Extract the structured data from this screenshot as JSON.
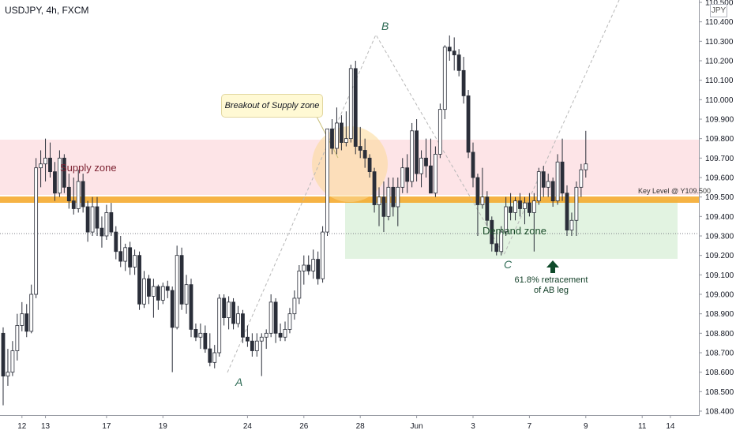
{
  "header": {
    "symbol_title": "USDJPY, 4h, FXCM"
  },
  "price_axis": {
    "currency": "JPY"
  },
  "annotations": {
    "supply_zone": "Supply zone",
    "demand_zone": "Demand zone",
    "key_level": "Key Level @ Y109.500",
    "breakout_callout": "Breakout of Supply zone",
    "retracement_line1": "61.8% retracement",
    "retracement_line2": "of AB leg",
    "point_a": "A",
    "point_b": "B",
    "point_c": "C"
  },
  "colors": {
    "bull": "#ffffff",
    "bear": "#2a2e39",
    "candle_outline": "#2a2e39",
    "supply_zone": "#fde4e7",
    "demand_zone": "#e2f3e1",
    "key_level_line": "#f5a623",
    "breakout_circle": "#fbd995",
    "pattern_line": "#b8b8b8",
    "arrow": "#0f4a2a"
  },
  "chart_data": {
    "type": "candlestick",
    "title": "USDJPY, 4h, FXCM",
    "y_ticks": [
      110.5,
      110.4,
      110.3,
      110.2,
      110.1,
      110.0,
      109.9,
      109.8,
      109.7,
      109.6,
      109.5,
      109.4,
      109.3,
      109.2,
      109.1,
      109.0,
      108.9,
      108.8,
      108.7,
      108.6,
      108.5,
      108.4
    ],
    "x_ticks": [
      {
        "label": "12",
        "index": 4
      },
      {
        "label": "13",
        "index": 9
      },
      {
        "label": "17",
        "index": 22
      },
      {
        "label": "19",
        "index": 34
      },
      {
        "label": "24",
        "index": 52
      },
      {
        "label": "26",
        "index": 64
      },
      {
        "label": "28",
        "index": 76
      },
      {
        "label": "Jun",
        "index": 88
      },
      {
        "label": "3",
        "index": 100
      },
      {
        "label": "7",
        "index": 112
      },
      {
        "label": "9",
        "index": 124
      },
      {
        "label": "11",
        "index": 136
      },
      {
        "label": "14",
        "index": 142
      }
    ],
    "ylim": [
      108.4,
      110.5
    ],
    "candles": [
      [
        108.8,
        108.83,
        108.43,
        108.58
      ],
      [
        108.58,
        108.72,
        108.53,
        108.6
      ],
      [
        108.6,
        108.76,
        108.58,
        108.71
      ],
      [
        108.71,
        108.9,
        108.66,
        108.84
      ],
      [
        108.84,
        108.96,
        108.81,
        108.9
      ],
      [
        108.9,
        108.95,
        108.78,
        108.81
      ],
      [
        108.81,
        109.05,
        108.8,
        109.0
      ],
      [
        109.0,
        109.7,
        108.98,
        109.65
      ],
      [
        109.65,
        109.74,
        109.55,
        109.67
      ],
      [
        109.67,
        109.8,
        109.58,
        109.7
      ],
      [
        109.7,
        109.78,
        109.6,
        109.63
      ],
      [
        109.63,
        109.68,
        109.48,
        109.52
      ],
      [
        109.52,
        109.74,
        109.5,
        109.7
      ],
      [
        109.7,
        109.72,
        109.52,
        109.55
      ],
      [
        109.55,
        109.62,
        109.44,
        109.48
      ],
      [
        109.48,
        109.6,
        109.41,
        109.44
      ],
      [
        109.44,
        109.64,
        109.42,
        109.58
      ],
      [
        109.58,
        109.62,
        109.42,
        109.45
      ],
      [
        109.45,
        109.48,
        109.27,
        109.32
      ],
      [
        109.32,
        109.5,
        109.3,
        109.45
      ],
      [
        109.45,
        109.5,
        109.3,
        109.34
      ],
      [
        109.34,
        109.4,
        109.24,
        109.3
      ],
      [
        109.3,
        109.46,
        109.28,
        109.42
      ],
      [
        109.42,
        109.47,
        109.3,
        109.32
      ],
      [
        109.32,
        109.35,
        109.18,
        109.22
      ],
      [
        109.22,
        109.3,
        109.14,
        109.17
      ],
      [
        109.17,
        109.26,
        109.12,
        109.24
      ],
      [
        109.24,
        109.27,
        109.1,
        109.14
      ],
      [
        109.14,
        109.23,
        109.1,
        109.2
      ],
      [
        109.2,
        109.22,
        108.92,
        108.95
      ],
      [
        108.95,
        109.12,
        108.93,
        109.08
      ],
      [
        109.08,
        109.1,
        108.95,
        108.99
      ],
      [
        108.99,
        109.08,
        108.88,
        109.04
      ],
      [
        109.04,
        109.05,
        108.92,
        108.97
      ],
      [
        108.97,
        109.06,
        108.95,
        109.04
      ],
      [
        109.04,
        109.07,
        108.98,
        109.02
      ],
      [
        109.02,
        109.04,
        108.6,
        108.83
      ],
      [
        108.83,
        109.25,
        108.82,
        109.2
      ],
      [
        109.2,
        109.24,
        108.92,
        108.95
      ],
      [
        108.95,
        109.1,
        108.9,
        109.05
      ],
      [
        109.05,
        109.08,
        108.78,
        108.82
      ],
      [
        108.82,
        108.85,
        108.76,
        108.78
      ],
      [
        108.78,
        108.85,
        108.72,
        108.8
      ],
      [
        108.8,
        108.84,
        108.7,
        108.72
      ],
      [
        108.72,
        108.8,
        108.63,
        108.65
      ],
      [
        108.65,
        108.74,
        108.62,
        108.7
      ],
      [
        108.7,
        109.0,
        108.68,
        108.98
      ],
      [
        108.98,
        109.0,
        108.84,
        108.88
      ],
      [
        108.88,
        108.99,
        108.82,
        108.96
      ],
      [
        108.96,
        108.98,
        108.82,
        108.85
      ],
      [
        108.85,
        108.94,
        108.83,
        108.9
      ],
      [
        108.9,
        108.92,
        108.75,
        108.78
      ],
      [
        108.78,
        108.84,
        108.73,
        108.76
      ],
      [
        108.76,
        108.8,
        108.68,
        108.71
      ],
      [
        108.71,
        108.8,
        108.68,
        108.76
      ],
      [
        108.76,
        108.8,
        108.58,
        108.78
      ],
      [
        108.78,
        108.82,
        108.72,
        108.8
      ],
      [
        108.8,
        109.0,
        108.78,
        108.96
      ],
      [
        108.96,
        108.98,
        108.75,
        108.8
      ],
      [
        108.8,
        108.85,
        108.76,
        108.78
      ],
      [
        108.78,
        108.86,
        108.76,
        108.82
      ],
      [
        108.82,
        108.93,
        108.8,
        108.9
      ],
      [
        108.9,
        109.02,
        108.87,
        108.98
      ],
      [
        108.98,
        109.15,
        108.95,
        109.12
      ],
      [
        109.12,
        109.2,
        109.05,
        109.15
      ],
      [
        109.15,
        109.2,
        109.1,
        109.12
      ],
      [
        109.12,
        109.23,
        109.08,
        109.18
      ],
      [
        109.18,
        109.22,
        109.05,
        109.08
      ],
      [
        109.08,
        109.35,
        109.06,
        109.32
      ],
      [
        109.32,
        109.85,
        109.3,
        109.85
      ],
      [
        109.85,
        109.9,
        109.72,
        109.75
      ],
      [
        109.75,
        109.96,
        109.72,
        109.88
      ],
      [
        109.88,
        109.92,
        109.74,
        109.78
      ],
      [
        109.78,
        109.94,
        109.76,
        109.8
      ],
      [
        109.8,
        110.18,
        109.78,
        110.16
      ],
      [
        110.16,
        110.2,
        109.72,
        109.76
      ],
      [
        109.76,
        109.86,
        109.7,
        109.74
      ],
      [
        109.74,
        109.8,
        109.65,
        109.7
      ],
      [
        109.7,
        109.72,
        109.6,
        109.63
      ],
      [
        109.63,
        109.65,
        109.42,
        109.46
      ],
      [
        109.46,
        109.55,
        109.35,
        109.5
      ],
      [
        109.5,
        109.58,
        109.32,
        109.4
      ],
      [
        109.4,
        109.6,
        109.38,
        109.55
      ],
      [
        109.55,
        109.6,
        109.4,
        109.45
      ],
      [
        109.45,
        109.6,
        109.35,
        109.55
      ],
      [
        109.55,
        109.7,
        109.52,
        109.65
      ],
      [
        109.65,
        109.72,
        109.52,
        109.58
      ],
      [
        109.58,
        109.88,
        109.55,
        109.84
      ],
      [
        109.84,
        109.9,
        109.58,
        109.62
      ],
      [
        109.62,
        109.74,
        109.55,
        109.7
      ],
      [
        109.7,
        109.8,
        109.6,
        109.66
      ],
      [
        109.66,
        109.8,
        109.52,
        109.52
      ],
      [
        109.52,
        109.76,
        109.5,
        109.72
      ],
      [
        109.72,
        109.98,
        109.7,
        109.95
      ],
      [
        109.95,
        110.28,
        109.9,
        110.27
      ],
      [
        110.27,
        110.33,
        110.2,
        110.25
      ],
      [
        110.25,
        110.32,
        110.15,
        110.23
      ],
      [
        110.23,
        110.26,
        110.12,
        110.15
      ],
      [
        110.15,
        110.22,
        109.98,
        110.02
      ],
      [
        110.02,
        110.05,
        109.7,
        109.73
      ],
      [
        109.73,
        109.78,
        109.55,
        109.6
      ],
      [
        109.6,
        109.62,
        109.3,
        109.46
      ],
      [
        109.46,
        109.65,
        109.44,
        109.5
      ],
      [
        109.5,
        109.53,
        109.35,
        109.38
      ],
      [
        109.38,
        109.4,
        109.22,
        109.26
      ],
      [
        109.26,
        109.33,
        109.2,
        109.22
      ],
      [
        109.22,
        109.35,
        109.2,
        109.32
      ],
      [
        109.32,
        109.5,
        109.3,
        109.45
      ],
      [
        109.45,
        109.52,
        109.38,
        109.42
      ],
      [
        109.42,
        109.5,
        109.38,
        109.48
      ],
      [
        109.48,
        109.52,
        109.4,
        109.44
      ],
      [
        109.44,
        109.5,
        109.36,
        109.47
      ],
      [
        109.47,
        109.52,
        109.4,
        109.42
      ],
      [
        109.42,
        109.52,
        109.22,
        109.48
      ],
      [
        109.48,
        109.65,
        109.46,
        109.63
      ],
      [
        109.63,
        109.66,
        109.5,
        109.55
      ],
      [
        109.55,
        109.62,
        109.5,
        109.58
      ],
      [
        109.58,
        109.6,
        109.45,
        109.48
      ],
      [
        109.48,
        109.72,
        109.46,
        109.68
      ],
      [
        109.68,
        109.8,
        109.48,
        109.52
      ],
      [
        109.52,
        109.56,
        109.3,
        109.33
      ],
      [
        109.33,
        109.42,
        109.3,
        109.38
      ],
      [
        109.38,
        109.58,
        109.3,
        109.55
      ],
      [
        109.55,
        109.67,
        109.5,
        109.64
      ],
      [
        109.64,
        109.84,
        109.6,
        109.67
      ]
    ]
  }
}
